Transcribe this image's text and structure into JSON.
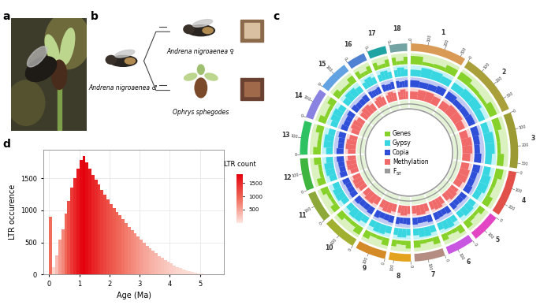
{
  "panel_labels": [
    "a",
    "b",
    "c",
    "d"
  ],
  "diagram": {
    "male": "Andrena nigroaenea ♂",
    "female": "Andrena nigroaenea ♀",
    "orchid": "Ophrys sphegodes"
  },
  "circos": {
    "legend": [
      {
        "label": "Genes",
        "color": "#86d12a"
      },
      {
        "label": "Gypsy",
        "color": "#38d6e0"
      },
      {
        "label": "Copia",
        "color": "#2f4fd8"
      },
      {
        "label": "Methylation",
        "color": "#f06a6a"
      },
      {
        "label": "F",
        "subscript": "ST",
        "color": "#9a9a9a"
      }
    ],
    "chromosomes": [
      {
        "name": "1",
        "length": 330,
        "ticks": [
          0,
          100,
          200,
          300
        ],
        "color": "#d99a55",
        "genes": [
          0.75,
          0.3,
          0.35,
          0.65
        ],
        "gypsy": [
          0.6,
          0.85,
          0.8,
          0.65
        ],
        "copia": [
          0.7,
          0.6,
          0.6,
          0.75
        ],
        "methylation": [
          0.7,
          0.9,
          0.9,
          0.75
        ]
      },
      {
        "name": "2",
        "length": 370,
        "ticks": [
          0,
          100,
          200,
          300
        ],
        "color": "#a9a03c",
        "genes": [
          0.7,
          0.35,
          0.3,
          0.7
        ],
        "gypsy": [
          0.65,
          0.8,
          0.85,
          0.6
        ],
        "copia": [
          0.75,
          0.55,
          0.6,
          0.7
        ],
        "methylation": [
          0.75,
          0.9,
          0.88,
          0.7
        ]
      },
      {
        "name": "3",
        "length": 330,
        "ticks": [
          0,
          100,
          200,
          300
        ],
        "color": "#9c9a32",
        "genes": [
          0.65,
          0.3,
          0.3,
          0.6
        ],
        "gypsy": [
          0.6,
          0.85,
          0.85,
          0.6
        ],
        "copia": [
          0.7,
          0.6,
          0.55,
          0.7
        ],
        "methylation": [
          0.7,
          0.92,
          0.9,
          0.72
        ]
      },
      {
        "name": "4",
        "length": 270,
        "ticks": [
          0,
          100,
          200
        ],
        "color": "#e2504a",
        "genes": [
          0.7,
          0.35,
          0.3,
          0.65
        ],
        "gypsy": [
          0.62,
          0.82,
          0.84,
          0.6
        ],
        "copia": [
          0.72,
          0.6,
          0.6,
          0.7
        ],
        "methylation": [
          0.72,
          0.9,
          0.9,
          0.7
        ]
      },
      {
        "name": "5",
        "length": 170,
        "ticks": [
          0,
          100
        ],
        "color": "#e244c4",
        "genes": [
          0.6,
          0.3,
          0.35,
          0.7
        ],
        "gypsy": [
          0.65,
          0.8,
          0.8,
          0.6
        ],
        "copia": [
          0.7,
          0.65,
          0.6,
          0.7
        ],
        "methylation": [
          0.75,
          0.88,
          0.9,
          0.7
        ]
      },
      {
        "name": "6",
        "length": 160,
        "ticks": [
          0,
          100
        ],
        "color": "#c856e0",
        "genes": [
          0.7,
          0.35,
          0.3,
          0.6
        ],
        "gypsy": [
          0.6,
          0.85,
          0.8,
          0.65
        ],
        "copia": [
          0.7,
          0.6,
          0.65,
          0.72
        ],
        "methylation": [
          0.7,
          0.9,
          0.88,
          0.74
        ]
      },
      {
        "name": "7",
        "length": 180,
        "ticks": [
          0,
          100
        ],
        "color": "#b58c82",
        "genes": [
          0.65,
          0.3,
          0.35,
          0.65
        ],
        "gypsy": [
          0.62,
          0.84,
          0.82,
          0.62
        ],
        "copia": [
          0.72,
          0.58,
          0.6,
          0.7
        ],
        "methylation": [
          0.72,
          0.9,
          0.9,
          0.72
        ]
      },
      {
        "name": "8",
        "length": 130,
        "ticks": [
          0,
          100
        ],
        "color": "#e3a31f",
        "genes": [
          0.7,
          0.4,
          0.35,
          0.6
        ],
        "gypsy": [
          0.6,
          0.8,
          0.82,
          0.64
        ],
        "copia": [
          0.68,
          0.62,
          0.6,
          0.7
        ],
        "methylation": [
          0.74,
          0.88,
          0.9,
          0.7
        ]
      },
      {
        "name": "9",
        "length": 180,
        "ticks": [
          0,
          100
        ],
        "color": "#d48a26",
        "genes": [
          0.68,
          0.32,
          0.3,
          0.66
        ],
        "gypsy": [
          0.64,
          0.84,
          0.84,
          0.6
        ],
        "copia": [
          0.7,
          0.6,
          0.58,
          0.72
        ],
        "methylation": [
          0.7,
          0.9,
          0.92,
          0.72
        ]
      },
      {
        "name": "10",
        "length": 200,
        "ticks": [
          0,
          100
        ],
        "color": "#a2b030",
        "genes": [
          0.72,
          0.34,
          0.32,
          0.64
        ],
        "gypsy": [
          0.6,
          0.82,
          0.86,
          0.62
        ],
        "copia": [
          0.72,
          0.6,
          0.6,
          0.7
        ],
        "methylation": [
          0.72,
          0.9,
          0.9,
          0.7
        ]
      },
      {
        "name": "11",
        "length": 180,
        "ticks": [
          0,
          100
        ],
        "color": "#8fa83a",
        "genes": [
          0.66,
          0.3,
          0.34,
          0.68
        ],
        "gypsy": [
          0.62,
          0.84,
          0.82,
          0.6
        ],
        "copia": [
          0.7,
          0.62,
          0.6,
          0.7
        ],
        "methylation": [
          0.74,
          0.9,
          0.88,
          0.72
        ]
      },
      {
        "name": "12",
        "length": 190,
        "ticks": [
          0,
          100
        ],
        "color": "#3fb53f",
        "genes": [
          0.7,
          0.32,
          0.3,
          0.64
        ],
        "gypsy": [
          0.64,
          0.82,
          0.84,
          0.62
        ],
        "copia": [
          0.7,
          0.6,
          0.62,
          0.72
        ],
        "methylation": [
          0.72,
          0.9,
          0.9,
          0.74
        ]
      },
      {
        "name": "13",
        "length": 200,
        "ticks": [
          0,
          100
        ],
        "color": "#2fc262",
        "genes": [
          0.68,
          0.34,
          0.32,
          0.66
        ],
        "gypsy": [
          0.6,
          0.84,
          0.84,
          0.6
        ],
        "copia": [
          0.72,
          0.58,
          0.6,
          0.7
        ],
        "methylation": [
          0.7,
          0.92,
          0.9,
          0.72
        ]
      },
      {
        "name": "14",
        "length": 180,
        "ticks": [
          0,
          100
        ],
        "color": "#8a82e0",
        "genes": [
          0.7,
          0.3,
          0.32,
          0.66
        ],
        "gypsy": [
          0.62,
          0.82,
          0.84,
          0.62
        ],
        "copia": [
          0.7,
          0.6,
          0.6,
          0.72
        ],
        "methylation": [
          0.72,
          0.9,
          0.9,
          0.72
        ]
      },
      {
        "name": "15",
        "length": 180,
        "ticks": [
          0,
          100
        ],
        "color": "#62a2e2",
        "genes": [
          0.66,
          0.32,
          0.3,
          0.68
        ],
        "gypsy": [
          0.64,
          0.84,
          0.82,
          0.6
        ],
        "copia": [
          0.72,
          0.6,
          0.62,
          0.7
        ],
        "methylation": [
          0.74,
          0.9,
          0.9,
          0.7
        ]
      },
      {
        "name": "16",
        "length": 110,
        "ticks": [
          0
        ],
        "color": "#4f82d2",
        "genes": [
          0.7,
          0.35,
          0.35,
          0.65
        ],
        "gypsy": [
          0.6,
          0.8,
          0.82,
          0.62
        ],
        "copia": [
          0.7,
          0.62,
          0.6,
          0.7
        ],
        "methylation": [
          0.72,
          0.88,
          0.9,
          0.72
        ]
      },
      {
        "name": "17",
        "length": 110,
        "ticks": [
          0
        ],
        "color": "#1fa3a3",
        "genes": [
          0.68,
          0.34,
          0.36,
          0.66
        ],
        "gypsy": [
          0.62,
          0.82,
          0.8,
          0.6
        ],
        "copia": [
          0.72,
          0.6,
          0.6,
          0.72
        ],
        "methylation": [
          0.7,
          0.9,
          0.88,
          0.72
        ]
      },
      {
        "name": "18",
        "length": 105,
        "ticks": [
          0
        ],
        "color": "#73a3a3",
        "genes": [
          0.7,
          0.32,
          0.34,
          0.68
        ],
        "gypsy": [
          0.64,
          0.84,
          0.82,
          0.62
        ],
        "copia": [
          0.7,
          0.6,
          0.62,
          0.7
        ],
        "methylation": [
          0.72,
          0.9,
          0.9,
          0.7
        ]
      }
    ]
  },
  "chart_data": {
    "type": "histogram",
    "x_label": "Age (Ma)",
    "y_label": "LTR occurence",
    "bins": [
      0,
      0.1,
      0.2,
      0.3,
      0.4,
      0.5,
      0.6,
      0.7,
      0.8,
      0.9,
      1.0,
      1.1,
      1.2,
      1.3,
      1.4,
      1.5,
      1.6,
      1.7,
      1.8,
      1.9,
      2.0,
      2.1,
      2.2,
      2.3,
      2.4,
      2.5,
      2.6,
      2.7,
      2.8,
      2.9,
      3.0,
      3.1,
      3.2,
      3.3,
      3.4,
      3.5,
      3.6,
      3.7,
      3.8,
      3.9,
      4.0,
      4.1,
      4.2,
      4.3,
      4.4,
      4.5,
      4.6,
      4.7,
      4.8,
      4.9,
      5.0,
      5.1,
      5.2,
      5.3,
      5.4,
      5.5
    ],
    "counts": [
      900,
      120,
      300,
      550,
      700,
      950,
      1150,
      1350,
      1500,
      1650,
      1780,
      1850,
      1750,
      1650,
      1550,
      1480,
      1400,
      1320,
      1250,
      1170,
      1100,
      1040,
      980,
      920,
      860,
      800,
      740,
      690,
      640,
      590,
      540,
      490,
      450,
      410,
      370,
      330,
      290,
      260,
      230,
      200,
      170,
      145,
      120,
      100,
      80,
      65,
      50,
      38,
      28,
      20,
      14,
      9,
      5,
      3,
      1
    ],
    "xlim": [
      -0.2,
      5.8
    ],
    "xticks": [
      0,
      1,
      2,
      3,
      4,
      5
    ],
    "ylim": [
      0,
      1950
    ],
    "yticks": [
      0,
      500,
      1000,
      1500
    ],
    "grid": true,
    "colorbar": {
      "label": "LTR count",
      "range": [
        0,
        1850
      ],
      "ticks": [
        500,
        1000,
        1500
      ]
    }
  }
}
